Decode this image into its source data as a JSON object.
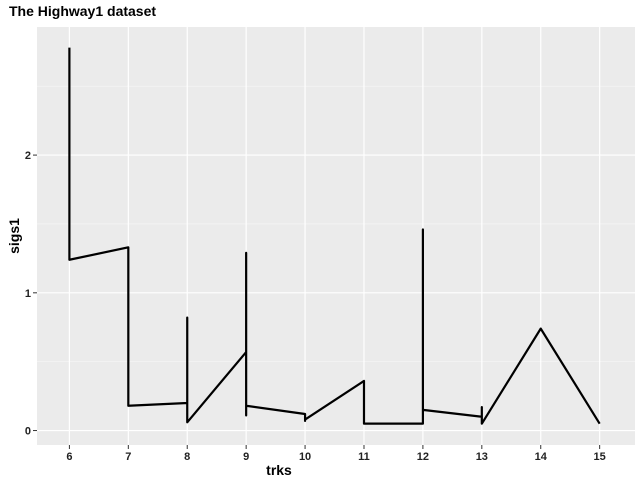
{
  "chart_data": {
    "type": "line",
    "title": "The Highway1 dataset",
    "xlabel": "trks",
    "ylabel": "sigs1",
    "xlim": [
      5.45,
      15.6
    ],
    "ylim": [
      -0.105,
      2.93
    ],
    "xticks": [
      6,
      7,
      8,
      9,
      10,
      11,
      12,
      13,
      14,
      15
    ],
    "yticks": [
      0,
      1,
      2
    ],
    "grid": true,
    "panel_background": "#ebebeb",
    "line_color": "#000000",
    "series": [
      {
        "x": [
          6,
          6,
          7,
          7,
          8,
          8,
          8,
          9,
          9,
          9,
          9,
          10,
          10,
          10,
          11,
          11,
          12,
          12,
          12,
          13,
          13,
          13,
          14,
          15
        ],
        "y": [
          2.78,
          1.24,
          1.33,
          0.18,
          0.2,
          0.82,
          0.06,
          0.57,
          1.29,
          0.11,
          0.18,
          0.12,
          0.07,
          0.08,
          0.36,
          0.05,
          0.05,
          1.46,
          0.15,
          0.1,
          0.17,
          0.05,
          0.74,
          0.05
        ]
      }
    ]
  }
}
